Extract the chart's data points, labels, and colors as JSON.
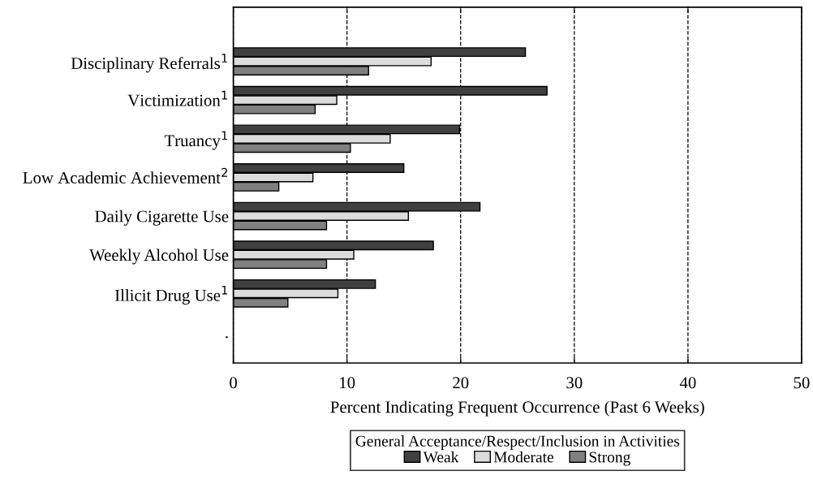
{
  "chart_data": {
    "type": "bar",
    "orientation": "horizontal",
    "categories": [
      null,
      "Disciplinary Referrals$^{1}$",
      "Victimization$^{1}$",
      "Truancy$^{1}$",
      "Low Academic Achievement$^{2}$",
      "Daily Cigarette Use",
      "Weekly Alcohol Use",
      "Illicit Drug Use$^{1}$",
      "."
    ],
    "series": [
      {
        "name": "Weak",
        "color": "#404040",
        "values": [
          null,
          25.7,
          27.6,
          19.9,
          15.0,
          21.7,
          17.6,
          12.5,
          null
        ]
      },
      {
        "name": "Moderate",
        "color": "#dcdcdc",
        "values": [
          null,
          17.4,
          9.1,
          13.8,
          7.0,
          15.4,
          10.6,
          9.2,
          null
        ]
      },
      {
        "name": "Strong",
        "color": "#808080",
        "values": [
          null,
          11.9,
          7.2,
          10.3,
          4.0,
          8.2,
          8.2,
          4.8,
          null
        ]
      }
    ],
    "xlim": [
      0,
      50
    ],
    "xticks": [
      0,
      10,
      20,
      30,
      40,
      50
    ],
    "xlabel": "Percent Indicating Frequent Occurrence (Past 6 Weeks)",
    "legend_title": "General Acceptance/Respect/Inclusion in Activities",
    "legend": "bottom",
    "grid": "x",
    "line_style": "dashed"
  }
}
